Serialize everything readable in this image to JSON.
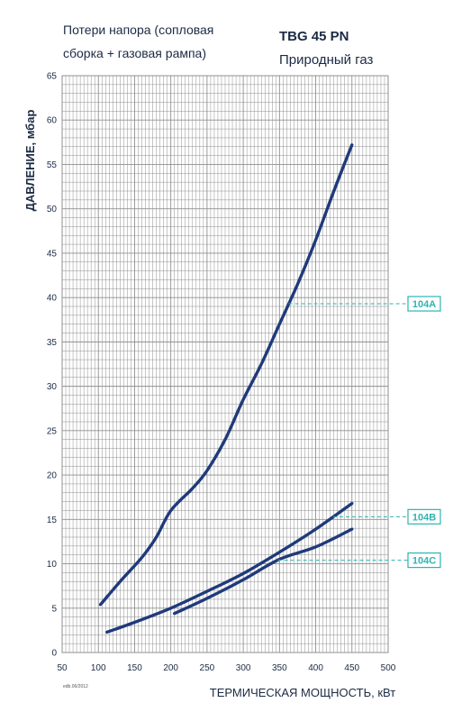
{
  "header": {
    "subtitle_line1": "Потери напора (сопловая",
    "subtitle_line2": "сборка + газовая рампа)",
    "model": "TBG 45 PN",
    "fuel": "Природный газ"
  },
  "footer_code": "edb.06/2012",
  "colors": {
    "grid": "#8f8f8f",
    "curve": "#1f3a7a",
    "label": "#2fb3b3",
    "text": "#1b2a44"
  },
  "chart_data": {
    "type": "line",
    "title": "",
    "xlabel": "ТЕРМИЧЕСКАЯ МОЩНОСТЬ, кВт",
    "ylabel": "ДАВЛЕНИЕ, мбар",
    "xlim": [
      50,
      500
    ],
    "ylim": [
      0,
      65
    ],
    "x_ticks": [
      "50",
      "100",
      "150",
      "200",
      "250",
      "300",
      "350",
      "400",
      "450",
      "500"
    ],
    "y_ticks": [
      "0",
      "5",
      "10",
      "15",
      "20",
      "25",
      "30",
      "35",
      "40",
      "45",
      "50",
      "55",
      "60",
      "65"
    ],
    "grid": true,
    "series": [
      {
        "name": "104A",
        "label_y": 39.3,
        "x": [
          103,
          130,
          160,
          180,
          200,
          230,
          250,
          275,
          300,
          325,
          350,
          375,
          400,
          425,
          450
        ],
        "y": [
          5.4,
          8.0,
          10.7,
          13.0,
          16.0,
          18.5,
          20.5,
          24.0,
          28.5,
          32.5,
          37.0,
          41.5,
          46.5,
          52.0,
          57.2
        ]
      },
      {
        "name": "104B",
        "label_y": 15.3,
        "x": [
          112,
          150,
          200,
          250,
          300,
          350,
          400,
          450
        ],
        "y": [
          2.3,
          3.4,
          5.0,
          6.9,
          8.9,
          11.3,
          13.9,
          16.8
        ]
      },
      {
        "name": "104C",
        "label_y": 10.4,
        "x": [
          205,
          250,
          300,
          350,
          400,
          450
        ],
        "y": [
          4.4,
          6.1,
          8.2,
          10.5,
          11.9,
          13.9
        ]
      }
    ]
  }
}
